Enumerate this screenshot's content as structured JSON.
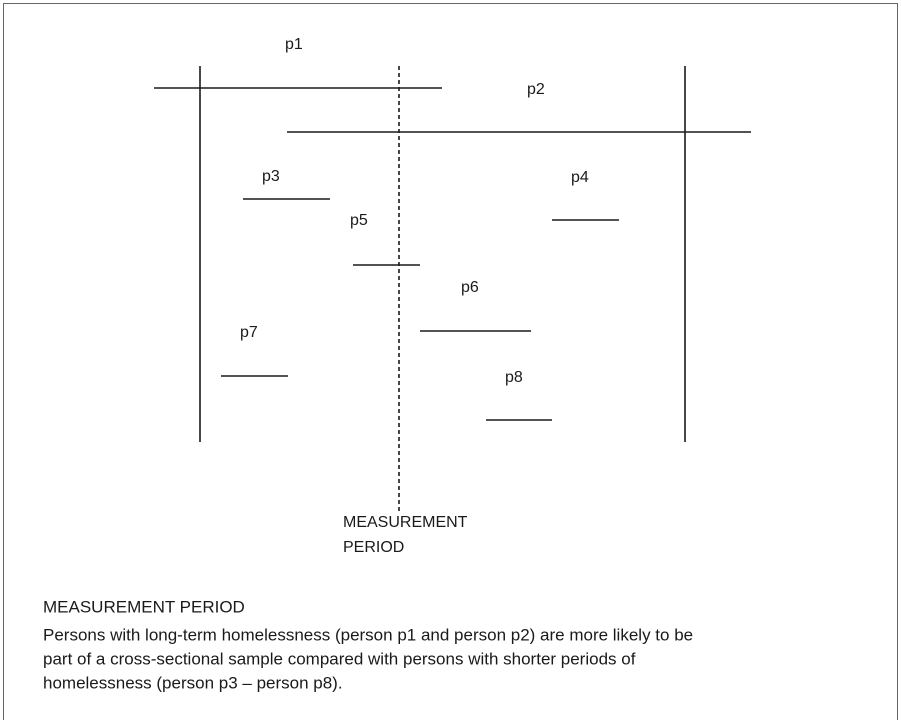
{
  "persons": [
    {
      "label": "p1"
    },
    {
      "label": "p2"
    },
    {
      "label": "p3"
    },
    {
      "label": "p4"
    },
    {
      "label": "p5"
    },
    {
      "label": "p6"
    },
    {
      "label": "p7"
    },
    {
      "label": "p8"
    }
  ],
  "measurement_label": [
    "MEASUREMENT",
    "PERIOD"
  ],
  "caption": {
    "title": "MEASUREMENT PERIOD",
    "lines": [
      "Persons with long-term homelessness (person p1 and person p2) are more likely to be",
      "part of a cross-sectional sample compared with persons with shorter periods of",
      "homelessness (person p3 – person p8)."
    ]
  }
}
